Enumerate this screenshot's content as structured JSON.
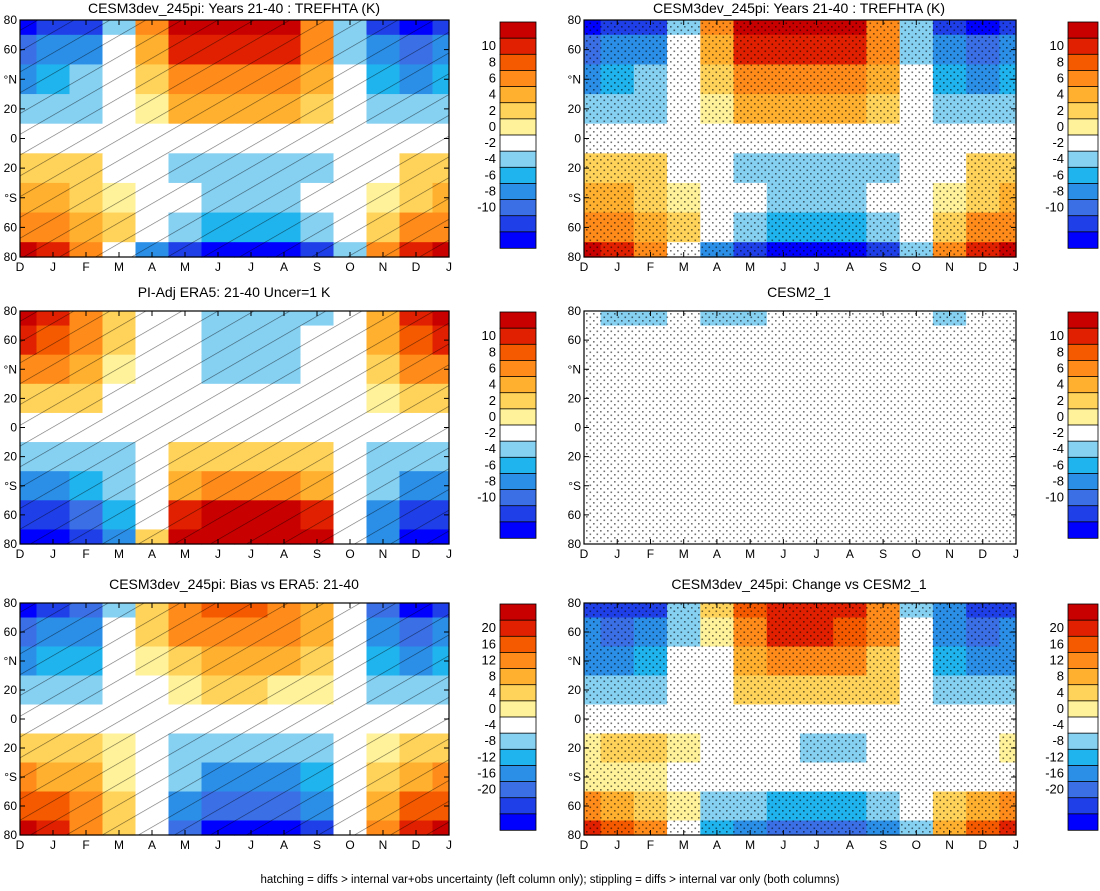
{
  "figure": {
    "footnote": "hatching = diffs > internal var+obs uncertainty (left column only); stippling = diffs > internal var only (both columns)"
  },
  "axes": {
    "x_ticks": [
      "D",
      "J",
      "F",
      "M",
      "A",
      "M",
      "J",
      "J",
      "A",
      "S",
      "O",
      "N",
      "D",
      "J"
    ],
    "y_ticks": [
      "80",
      "60",
      "°N",
      "20",
      "0",
      "20",
      "°S",
      "60",
      "80"
    ]
  },
  "colorbars": {
    "small": {
      "labels": [
        "10",
        "8",
        "6",
        "4",
        "2",
        "0",
        "-2",
        "-4",
        "-6",
        "-8",
        "-10"
      ],
      "colors": [
        "#0000ff",
        "#1f3fe8",
        "#3a6fe6",
        "#2b8fe8",
        "#1fb4ee",
        "#86d0f2",
        "#ffffff",
        "#fff29a",
        "#ffd35a",
        "#ffb02e",
        "#ff8c1a",
        "#f55a00",
        "#e02000",
        "#c80000"
      ]
    },
    "large": {
      "labels": [
        "20",
        "16",
        "12",
        "8",
        "4",
        "0",
        "-4",
        "-8",
        "-12",
        "-16",
        "-20"
      ],
      "colors": [
        "#0000ff",
        "#1f3fe8",
        "#3a6fe6",
        "#2b8fe8",
        "#1fb4ee",
        "#86d0f2",
        "#ffffff",
        "#fff29a",
        "#ffd35a",
        "#ffb02e",
        "#ff8c1a",
        "#f55a00",
        "#e02000",
        "#c80000"
      ]
    }
  },
  "chart_data": [
    {
      "type": "heatmap",
      "title": "CESM3dev_245pi: Years 21-40 : TREFHTA (K)",
      "colorbar": "small",
      "overlay": "hatching",
      "x": [
        "D",
        "J",
        "F",
        "M",
        "A",
        "M",
        "J",
        "J",
        "A",
        "S",
        "O",
        "N",
        "D",
        "J"
      ],
      "y": [
        80,
        60,
        40,
        20,
        0,
        -20,
        -40,
        -60,
        -80
      ],
      "values": [
        [
          -10,
          -9,
          -8,
          -2,
          6,
          10,
          10,
          10,
          10,
          6,
          -3,
          -8,
          -10,
          -9
        ],
        [
          -7,
          -6,
          -5,
          -1,
          4,
          8,
          8,
          8,
          8,
          6,
          -2,
          -6,
          -7,
          -6
        ],
        [
          -5,
          -4,
          -3,
          0,
          2,
          6,
          6,
          6,
          6,
          4,
          -1,
          -4,
          -5,
          -4
        ],
        [
          -3,
          -3,
          -2,
          0,
          1,
          4,
          4,
          4,
          4,
          2,
          0,
          -3,
          -3,
          -3
        ],
        [
          0,
          0,
          0,
          0,
          0,
          0,
          0,
          0,
          0,
          0,
          0,
          0,
          0,
          0
        ],
        [
          2,
          2,
          2,
          0,
          0,
          -2,
          -2,
          -2,
          -2,
          -2,
          0,
          0,
          2,
          2
        ],
        [
          4,
          4,
          3,
          1,
          0,
          -1,
          -2,
          -2,
          -2,
          -1,
          0,
          1,
          2,
          4
        ],
        [
          6,
          5,
          4,
          2,
          -1,
          -3,
          -4,
          -4,
          -4,
          -3,
          -1,
          2,
          5,
          6
        ],
        [
          10,
          9,
          6,
          0,
          -5,
          -8,
          -10,
          -10,
          -10,
          -8,
          -3,
          5,
          9,
          10
        ]
      ]
    },
    {
      "type": "heatmap",
      "title": "CESM3dev_245pi: Years 21-40 : TREFHTA (K)",
      "colorbar": "small",
      "overlay": "stippling",
      "x": [
        "D",
        "J",
        "F",
        "M",
        "A",
        "M",
        "J",
        "J",
        "A",
        "S",
        "O",
        "N",
        "D",
        "J"
      ],
      "y": [
        80,
        60,
        40,
        20,
        0,
        -20,
        -40,
        -60,
        -80
      ],
      "values": [
        [
          -10,
          -9,
          -8,
          -2,
          6,
          10,
          10,
          10,
          10,
          6,
          -3,
          -8,
          -10,
          -9
        ],
        [
          -7,
          -6,
          -5,
          -1,
          4,
          8,
          8,
          8,
          8,
          6,
          -2,
          -6,
          -7,
          -6
        ],
        [
          -5,
          -4,
          -3,
          0,
          2,
          6,
          6,
          6,
          6,
          4,
          -1,
          -4,
          -5,
          -4
        ],
        [
          -3,
          -3,
          -2,
          0,
          1,
          4,
          4,
          4,
          4,
          2,
          0,
          -3,
          -3,
          -3
        ],
        [
          0,
          0,
          0,
          0,
          0,
          0,
          0,
          0,
          0,
          0,
          0,
          0,
          0,
          0
        ],
        [
          2,
          2,
          2,
          0,
          0,
          -2,
          -2,
          -2,
          -2,
          -2,
          0,
          0,
          2,
          2
        ],
        [
          4,
          4,
          3,
          1,
          0,
          -1,
          -2,
          -2,
          -2,
          -1,
          0,
          1,
          2,
          4
        ],
        [
          6,
          5,
          4,
          2,
          -1,
          -3,
          -4,
          -4,
          -4,
          -3,
          -1,
          2,
          5,
          6
        ],
        [
          10,
          9,
          6,
          0,
          -5,
          -8,
          -10,
          -10,
          -10,
          -8,
          -3,
          5,
          9,
          10
        ]
      ]
    },
    {
      "type": "heatmap",
      "title": "PI-Adj ERA5: 21-40 Uncer=1 K",
      "colorbar": "small",
      "overlay": "hatching",
      "x": [
        "D",
        "J",
        "F",
        "M",
        "A",
        "M",
        "J",
        "J",
        "A",
        "S",
        "O",
        "N",
        "D",
        "J"
      ],
      "y": [
        80,
        60,
        40,
        20,
        0,
        -20,
        -40,
        -60,
        -80
      ],
      "values": [
        [
          10,
          9,
          6,
          2,
          0,
          -1,
          -2,
          -2,
          -2,
          -2,
          0,
          4,
          9,
          10
        ],
        [
          8,
          7,
          5,
          2,
          0,
          -1,
          -2,
          -2,
          -2,
          -1,
          0,
          4,
          7,
          8
        ],
        [
          6,
          5,
          4,
          1,
          0,
          -1,
          -2,
          -2,
          -2,
          -1,
          0,
          3,
          5,
          6
        ],
        [
          3,
          3,
          2,
          0,
          0,
          0,
          -1,
          -1,
          -1,
          0,
          0,
          1,
          3,
          3
        ],
        [
          0,
          0,
          0,
          0,
          0,
          0,
          0,
          0,
          0,
          0,
          0,
          0,
          0,
          0
        ],
        [
          -2,
          -2,
          -2,
          -2,
          -1,
          2,
          2,
          2,
          2,
          2,
          -1,
          -2,
          -2,
          -2
        ],
        [
          -5,
          -5,
          -4,
          -3,
          0,
          4,
          6,
          6,
          6,
          4,
          0,
          -3,
          -5,
          -5
        ],
        [
          -8,
          -8,
          -7,
          -4,
          0,
          8,
          10,
          10,
          10,
          8,
          0,
          -5,
          -8,
          -8
        ],
        [
          -10,
          -10,
          -9,
          -5,
          2,
          10,
          10,
          10,
          10,
          10,
          0,
          -6,
          -10,
          -10
        ]
      ]
    },
    {
      "type": "heatmap",
      "title": "CESM2_1",
      "colorbar": "small",
      "overlay": "stippling",
      "x": [
        "D",
        "J",
        "F",
        "M",
        "A",
        "M",
        "J",
        "J",
        "A",
        "S",
        "O",
        "N",
        "D",
        "J"
      ],
      "y": [
        80,
        60,
        40,
        20,
        0,
        -20,
        -40,
        -60,
        -80
      ],
      "values": [
        [
          0,
          -2,
          -2,
          0,
          -2,
          -2,
          0,
          0,
          0,
          0,
          0,
          -2,
          0,
          0
        ],
        [
          0,
          0,
          0,
          0,
          0,
          0,
          0,
          0,
          0,
          0,
          0,
          0,
          0,
          0
        ],
        [
          0,
          0,
          0,
          0,
          0,
          0,
          0,
          0,
          0,
          0,
          0,
          0,
          0,
          0
        ],
        [
          0,
          0,
          0,
          0,
          0,
          0,
          0,
          0,
          0,
          0,
          0,
          0,
          0,
          0
        ],
        [
          0,
          0,
          0,
          0,
          0,
          0,
          0,
          0,
          0,
          0,
          0,
          0,
          0,
          0
        ],
        [
          0,
          0,
          0,
          0,
          0,
          0,
          0,
          0,
          0,
          0,
          0,
          0,
          0,
          0
        ],
        [
          0,
          0,
          0,
          0,
          0,
          0,
          0,
          0,
          0,
          0,
          0,
          0,
          0,
          0
        ],
        [
          0,
          0,
          0,
          0,
          0,
          0,
          0,
          0,
          0,
          0,
          0,
          0,
          0,
          0
        ],
        [
          0,
          0,
          0,
          0,
          0,
          0,
          0,
          0,
          0,
          0,
          0,
          0,
          0,
          0
        ]
      ]
    },
    {
      "type": "heatmap",
      "title": "CESM3dev_245pi: Bias vs ERA5: 21-40",
      "colorbar": "large",
      "overlay": "hatching",
      "x": [
        "D",
        "J",
        "F",
        "M",
        "A",
        "M",
        "J",
        "J",
        "A",
        "S",
        "O",
        "N",
        "D",
        "J"
      ],
      "y": [
        80,
        60,
        40,
        20,
        0,
        -20,
        -40,
        -60,
        -80
      ],
      "values": [
        [
          -20,
          -18,
          -14,
          -4,
          4,
          12,
          14,
          14,
          12,
          8,
          -2,
          -14,
          -20,
          -18
        ],
        [
          -14,
          -12,
          -10,
          -3,
          4,
          10,
          12,
          12,
          10,
          8,
          -2,
          -10,
          -14,
          -12
        ],
        [
          -10,
          -9,
          -7,
          -2,
          2,
          6,
          8,
          8,
          7,
          5,
          -1,
          -7,
          -10,
          -9
        ],
        [
          -6,
          -5,
          -4,
          -1,
          1,
          3,
          4,
          4,
          3,
          2,
          0,
          -4,
          -6,
          -5
        ],
        [
          0,
          0,
          0,
          0,
          0,
          0,
          0,
          0,
          0,
          0,
          0,
          0,
          0,
          0
        ],
        [
          6,
          5,
          4,
          2,
          0,
          -4,
          -6,
          -6,
          -6,
          -4,
          0,
          3,
          5,
          6
        ],
        [
          10,
          9,
          7,
          3,
          0,
          -6,
          -10,
          -10,
          -10,
          -7,
          0,
          5,
          9,
          10
        ],
        [
          14,
          13,
          10,
          4,
          0,
          -10,
          -14,
          -14,
          -14,
          -10,
          0,
          7,
          13,
          14
        ],
        [
          20,
          18,
          12,
          4,
          0,
          -14,
          -20,
          -20,
          -20,
          -16,
          0,
          10,
          18,
          20
        ]
      ]
    },
    {
      "type": "heatmap",
      "title": "CESM3dev_245pi: Change vs CESM2_1",
      "colorbar": "large",
      "overlay": "stippling",
      "x": [
        "D",
        "J",
        "F",
        "M",
        "A",
        "M",
        "J",
        "J",
        "A",
        "S",
        "O",
        "N",
        "D",
        "J"
      ],
      "y": [
        80,
        60,
        40,
        20,
        0,
        -20,
        -40,
        -60,
        -80
      ],
      "values": [
        [
          -16,
          -18,
          -16,
          -6,
          4,
          14,
          16,
          18,
          16,
          10,
          -4,
          -12,
          -16,
          -18
        ],
        [
          -12,
          -14,
          -12,
          -4,
          2,
          12,
          16,
          16,
          14,
          10,
          -2,
          -10,
          -14,
          -12
        ],
        [
          -10,
          -10,
          -8,
          -3,
          0,
          8,
          10,
          10,
          10,
          6,
          -2,
          -8,
          -10,
          -10
        ],
        [
          -6,
          -6,
          -4,
          -1,
          0,
          4,
          6,
          6,
          6,
          4,
          0,
          -4,
          -6,
          -6
        ],
        [
          0,
          0,
          0,
          0,
          0,
          0,
          0,
          0,
          0,
          0,
          0,
          0,
          0,
          0
        ],
        [
          2,
          4,
          4,
          2,
          0,
          0,
          -2,
          -4,
          -4,
          -2,
          0,
          0,
          0,
          2
        ],
        [
          2,
          2,
          2,
          0,
          0,
          0,
          -2,
          -2,
          -2,
          0,
          0,
          0,
          0,
          0
        ],
        [
          10,
          8,
          6,
          2,
          -4,
          -6,
          -8,
          -8,
          -8,
          -6,
          0,
          4,
          8,
          10
        ],
        [
          16,
          14,
          10,
          0,
          -8,
          -12,
          -14,
          -14,
          -14,
          -12,
          -4,
          8,
          14,
          16
        ]
      ]
    }
  ]
}
